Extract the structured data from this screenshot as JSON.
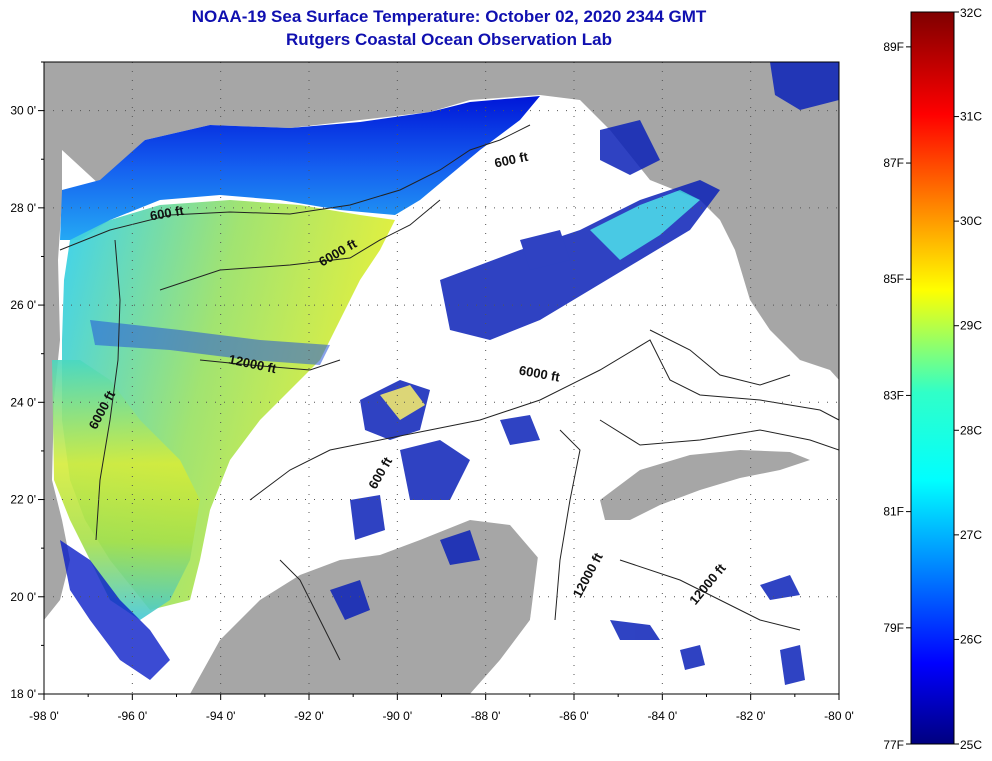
{
  "title_line1": "NOAA-19 Sea Surface Temperature:  October 02, 2020 2344 GMT",
  "title_line2": "Rutgers Coastal Ocean Observation Lab",
  "map": {
    "lon_range": [
      -98,
      -80
    ],
    "lat_range": [
      18,
      31
    ],
    "lon_ticks": [
      "-98 0'",
      "-96 0'",
      "-94 0'",
      "-92 0'",
      "-90 0'",
      "-88 0'",
      "-86 0'",
      "-84 0'",
      "-82 0'",
      "-80 0'"
    ],
    "lat_ticks": [
      "30 0'",
      "28 0'",
      "26 0'",
      "24 0'",
      "22 0'",
      "20 0'",
      "18 0'"
    ],
    "land_color": "#a6a6a6",
    "no_data_color": "#ffffff",
    "contour_labels": [
      {
        "text": "600 ft",
        "lon": -95.2,
        "lat": 27.8,
        "rotate": -10
      },
      {
        "text": "600 ft",
        "lon": -87.4,
        "lat": 28.9,
        "rotate": -12
      },
      {
        "text": "6000 ft",
        "lon": -91.3,
        "lat": 27.0,
        "rotate": -30
      },
      {
        "text": "12000 ft",
        "lon": -93.3,
        "lat": 24.7,
        "rotate": 12
      },
      {
        "text": "6000 ft",
        "lon": -96.6,
        "lat": 23.8,
        "rotate": -62
      },
      {
        "text": "6000 ft",
        "lon": -86.8,
        "lat": 24.5,
        "rotate": 10
      },
      {
        "text": "600 ft",
        "lon": -90.3,
        "lat": 22.5,
        "rotate": -60
      },
      {
        "text": "12000 ft",
        "lon": -85.6,
        "lat": 20.4,
        "rotate": -62
      },
      {
        "text": "12000 ft",
        "lon": -82.9,
        "lat": 20.2,
        "rotate": -50
      }
    ]
  },
  "colorbar": {
    "celsius": [
      "32C",
      "31C",
      "30C",
      "29C",
      "28C",
      "27C",
      "26C",
      "25C"
    ],
    "fahrenheit": [
      "89F",
      "87F",
      "85F",
      "83F",
      "81F",
      "79F",
      "77F"
    ],
    "fahrenheit_values": [
      89,
      87,
      85,
      83,
      81,
      79,
      77
    ],
    "min_c": 25,
    "max_c": 32
  }
}
